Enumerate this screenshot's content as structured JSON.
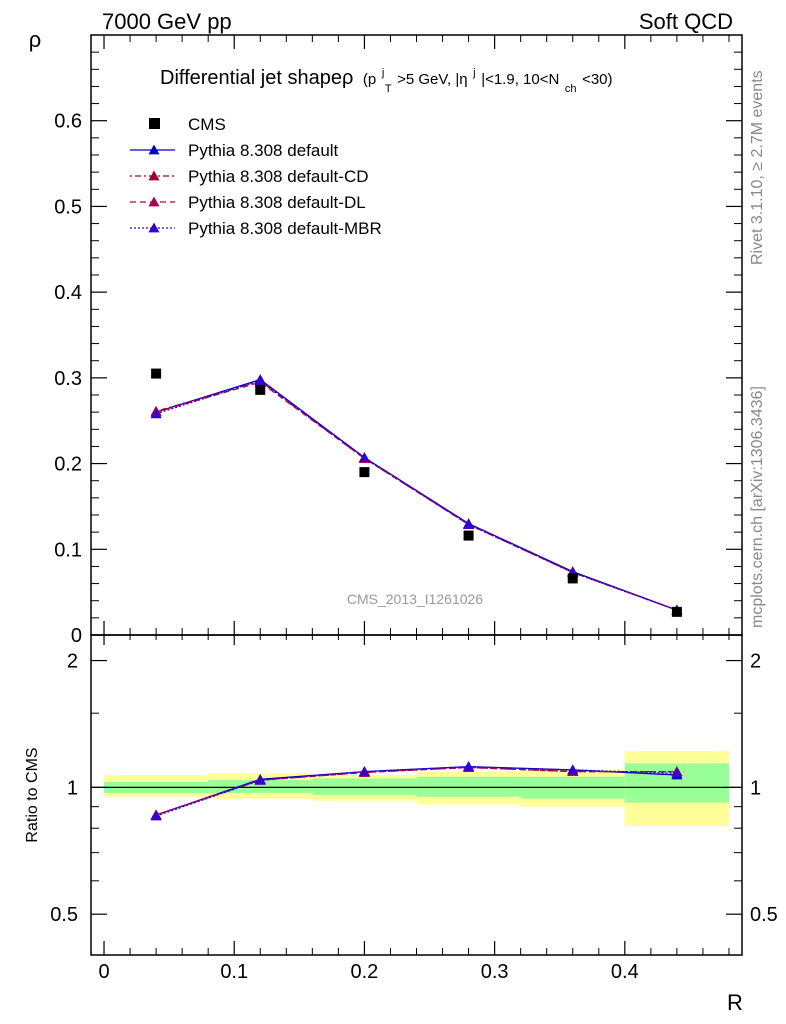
{
  "header": {
    "left": "7000 GeV pp",
    "right": "Soft QCD"
  },
  "side": {
    "top": "Rivet 3.1.10, ≥ 2.7M events",
    "bottom": "mcplots.cern.ch [arXiv:1306.3436]"
  },
  "watermark": "CMS_2013_I1261026",
  "chart_data": {
    "type": "line",
    "title": {
      "main": "Differential jet shapeρ",
      "p": "(p",
      "p_sup": "j",
      "p_sub": "T",
      "mid": ">5 GeV, |η",
      "eta_sup": "j",
      "mid2": "|<1.9, 10<N",
      "n_sub": "ch",
      "end": "<30)"
    },
    "xlabel": "R",
    "ylabel": "ρ",
    "ratio_ylabel": "Ratio to CMS",
    "xlim": [
      -0.01,
      0.49
    ],
    "ylim": [
      0,
      0.7
    ],
    "ratio_ylim": [
      0.4,
      2.3
    ],
    "x_ticks": [
      "0",
      "0.1",
      "0.2",
      "0.3",
      "0.4"
    ],
    "y_ticks": [
      "0",
      "0.1",
      "0.2",
      "0.3",
      "0.4",
      "0.5",
      "0.6"
    ],
    "ratio_ticks": [
      "0.5",
      "1",
      "2"
    ],
    "bins": [
      [
        0.0,
        0.08
      ],
      [
        0.08,
        0.16
      ],
      [
        0.16,
        0.24
      ],
      [
        0.24,
        0.32
      ],
      [
        0.32,
        0.4
      ],
      [
        0.4,
        0.48
      ]
    ],
    "data": {
      "name": "CMS",
      "x": [
        0.04,
        0.12,
        0.2,
        0.28,
        0.36,
        0.44
      ],
      "y": [
        0.305,
        0.286,
        0.19,
        0.116,
        0.066,
        0.027
      ]
    },
    "series": [
      {
        "name": "Pythia 8.308 default",
        "color": "#0000cc",
        "dash": "",
        "x": [
          0.04,
          0.12,
          0.2,
          0.28,
          0.36,
          0.44
        ],
        "y": [
          0.26,
          0.298,
          0.207,
          0.13,
          0.074,
          0.029
        ],
        "ratio": [
          0.86,
          1.045,
          1.09,
          1.12,
          1.1,
          1.07
        ]
      },
      {
        "name": "Pythia 8.308 default-CD",
        "color": "#990033",
        "dash": "2,3,6,3",
        "x": [
          0.04,
          0.12,
          0.2,
          0.28,
          0.36,
          0.44
        ],
        "y": [
          0.261,
          0.296,
          0.206,
          0.129,
          0.073,
          0.029
        ],
        "ratio": [
          0.86,
          1.04,
          1.085,
          1.115,
          1.09,
          1.09
        ]
      },
      {
        "name": "Pythia 8.308 default-DL",
        "color": "#aa0055",
        "dash": "6,4",
        "x": [
          0.04,
          0.12,
          0.2,
          0.28,
          0.36,
          0.44
        ],
        "y": [
          0.26,
          0.295,
          0.206,
          0.129,
          0.073,
          0.029
        ],
        "ratio": [
          0.86,
          1.04,
          1.085,
          1.115,
          1.09,
          1.09
        ]
      },
      {
        "name": "Pythia 8.308 default-MBR",
        "color": "#3300cc",
        "dash": "2,2",
        "x": [
          0.04,
          0.12,
          0.2,
          0.28,
          0.36,
          0.44
        ],
        "y": [
          0.258,
          0.297,
          0.207,
          0.129,
          0.073,
          0.029
        ],
        "ratio": [
          0.855,
          1.04,
          1.09,
          1.12,
          1.1,
          1.08
        ]
      }
    ],
    "ratio_bands": {
      "stat": [
        [
          0.97,
          1.03
        ],
        [
          0.97,
          1.04
        ],
        [
          0.96,
          1.05
        ],
        [
          0.95,
          1.06
        ],
        [
          0.94,
          1.06
        ],
        [
          0.92,
          1.14
        ]
      ],
      "total": [
        [
          0.95,
          1.07
        ],
        [
          0.94,
          1.08
        ],
        [
          0.93,
          1.07
        ],
        [
          0.91,
          1.09
        ],
        [
          0.9,
          1.1
        ],
        [
          0.81,
          1.22
        ]
      ],
      "stat_color": "#99ff99",
      "total_color": "#ffff99"
    },
    "grid": false,
    "legend_position": "top-left"
  }
}
